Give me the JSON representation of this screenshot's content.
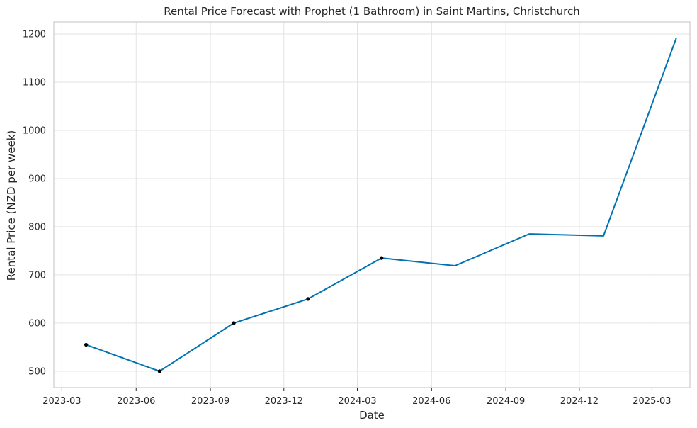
{
  "chart_data": {
    "type": "line",
    "title": "Rental Price Forecast with Prophet (1 Bathroom) in Saint Martins, Christchurch",
    "xlabel": "Date",
    "ylabel": "Rental Price (NZD per week)",
    "x_tick_labels": [
      "2023-03",
      "2023-06",
      "2023-09",
      "2023-12",
      "2024-03",
      "2024-06",
      "2024-09",
      "2024-12",
      "2025-03"
    ],
    "y_ticks": [
      500,
      600,
      700,
      800,
      900,
      1000,
      1100,
      1200
    ],
    "xlim": [
      "2023-02-19",
      "2025-04-17"
    ],
    "ylim": [
      466,
      1225
    ],
    "grid": true,
    "series": [
      {
        "color": "#0072b2",
        "x": [
          "2023-03-31",
          "2023-06-30",
          "2023-09-30",
          "2023-12-31",
          "2024-03-31",
          "2024-06-30",
          "2024-09-30",
          "2024-12-31",
          "2025-03-31"
        ],
        "values": [
          555,
          500,
          600,
          650,
          735,
          719,
          785,
          781,
          1191
        ]
      }
    ],
    "observed_points": {
      "color": "#000000",
      "x": [
        "2023-03-31",
        "2023-06-30",
        "2023-09-30",
        "2023-12-31",
        "2024-03-31"
      ],
      "values": [
        555,
        500,
        600,
        650,
        735
      ]
    }
  }
}
